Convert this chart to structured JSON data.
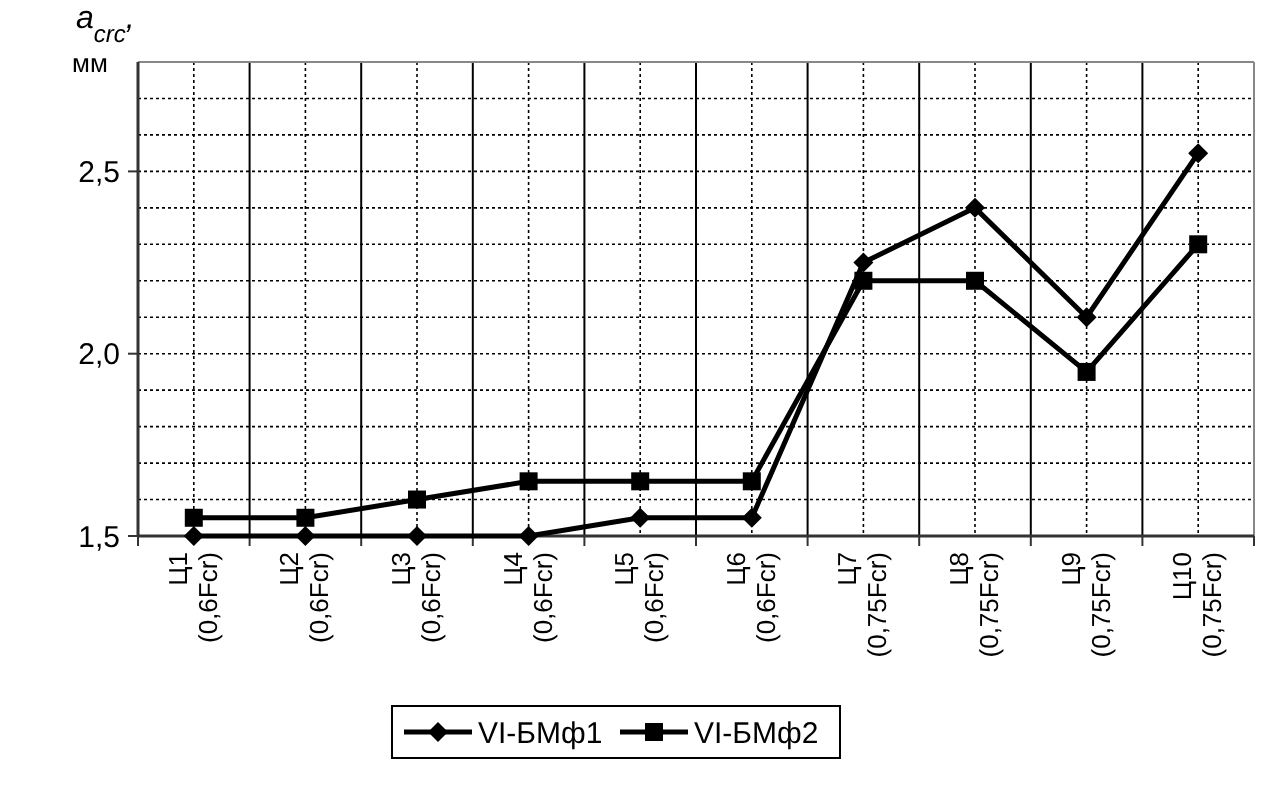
{
  "chart_data": {
    "type": "line",
    "ylabel": "a$_{crc}$,\nмм",
    "categories": [
      "Ц1\n(0,6Fcr)",
      "Ц2\n(0,6Fcr)",
      "Ц3\n(0,6Fcr)",
      "Ц4\n(0,6Fcr)",
      "Ц5\n(0,6Fcr)",
      "Ц6\n(0,6Fcr)",
      "Ц7\n(0,75Fcr)",
      "Ц8\n(0,75Fcr)",
      "Ц9\n(0,75Fcr)",
      "Ц10\n(0,75Fcr)"
    ],
    "series": [
      {
        "name": "VI-БМф1",
        "color": "#000000",
        "marker": "diamond",
        "values": [
          1.5,
          1.5,
          1.5,
          1.5,
          1.55,
          1.55,
          2.25,
          2.4,
          2.1,
          2.55
        ]
      },
      {
        "name": "VI-БМф2",
        "color": "#000000",
        "marker": "square",
        "values": [
          1.55,
          1.55,
          1.6,
          1.65,
          1.65,
          1.65,
          2.2,
          2.2,
          1.95,
          2.3
        ]
      }
    ],
    "ylim": [
      1.5,
      2.8
    ],
    "yticks": [
      {
        "value": 1.5,
        "label": "1,5"
      },
      {
        "value": 1.6,
        "label": null
      },
      {
        "value": 1.7,
        "label": null
      },
      {
        "value": 1.8,
        "label": null
      },
      {
        "value": 1.9,
        "label": null
      },
      {
        "value": 2.0,
        "label": "2,0"
      },
      {
        "value": 2.1,
        "label": null
      },
      {
        "value": 2.2,
        "label": null
      },
      {
        "value": 2.3,
        "label": null
      },
      {
        "value": 2.4,
        "label": null
      },
      {
        "value": 2.5,
        "label": "2,5"
      },
      {
        "value": 2.6,
        "label": null
      },
      {
        "value": 2.7,
        "label": null
      },
      {
        "value": 2.8,
        "label": null
      }
    ],
    "grid": true,
    "legend": "bottom",
    "line_style": "solid"
  }
}
